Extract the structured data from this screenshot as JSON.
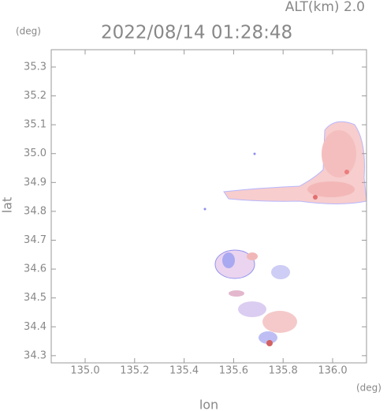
{
  "chart_data": {
    "type": "map",
    "title": "2022/08/14 01:28:48",
    "subtitle": "ALT(km) 2.0",
    "y_unit": "(deg)",
    "x_unit": "(deg)",
    "x_label": "lon",
    "y_label": "lat",
    "xlim": [
      134.863,
      136.137
    ],
    "ylim": [
      34.275,
      35.36
    ],
    "xticks": [
      {
        "value": 135,
        "label": "135.0"
      },
      135.2,
      135.4,
      135.6,
      135.8,
      {
        "value": 136,
        "label": "136.0"
      }
    ],
    "yticks": [
      34.3,
      34.4,
      34.5,
      34.6,
      34.7,
      34.8,
      34.9,
      {
        "value": 35,
        "label": "35.0"
      },
      35.1,
      35.2,
      35.3
    ]
  }
}
